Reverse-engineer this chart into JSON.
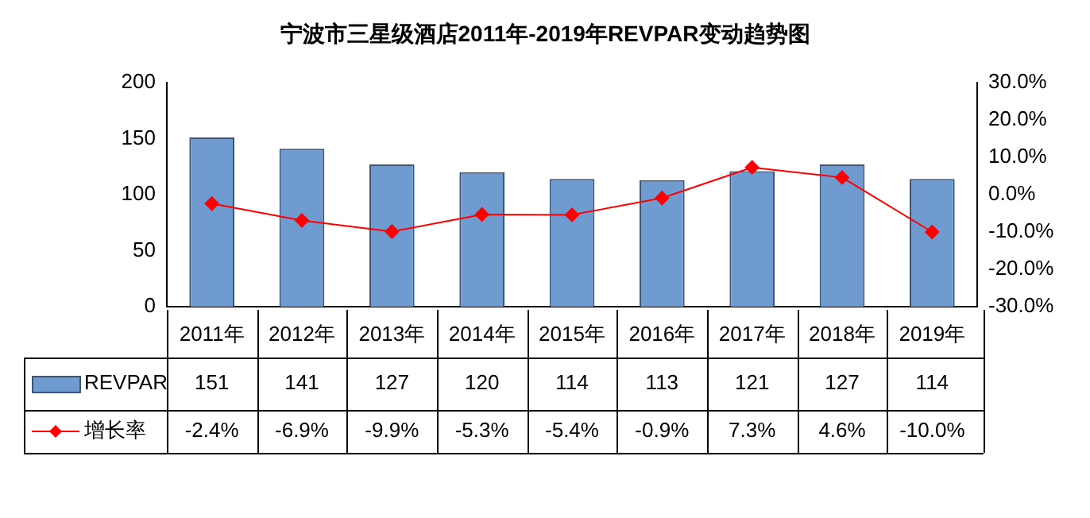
{
  "chart_data": {
    "type": "bar",
    "title": "宁波市三星级酒店2011年-2019年REVPAR变动趋势图",
    "categories": [
      "2011年",
      "2012年",
      "2013年",
      "2014年",
      "2015年",
      "2016年",
      "2017年",
      "2018年",
      "2019年"
    ],
    "series": [
      {
        "name": "REVPAR",
        "color": "#6f9bd0",
        "values": [
          151,
          141,
          127,
          120,
          114,
          113,
          121,
          127,
          114
        ],
        "value_labels": [
          "151",
          "141",
          "127",
          "120",
          "114",
          "113",
          "121",
          "127",
          "114"
        ]
      },
      {
        "name": "增长率",
        "type": "line",
        "axis": "y2",
        "color": "#ff0000",
        "marker": "diamond",
        "values": [
          -2.4,
          -6.9,
          -9.9,
          -5.3,
          -5.4,
          -0.9,
          7.3,
          4.6,
          -10.0
        ],
        "value_labels": [
          "-2.4%",
          "-6.9%",
          "-9.9%",
          "-5.3%",
          "-5.4%",
          "-0.9%",
          "7.3%",
          "4.6%",
          "-10.0%"
        ]
      }
    ],
    "ylim": [
      0,
      200
    ],
    "yticks": [
      0,
      50,
      100,
      150,
      200
    ],
    "y2lim": [
      -30,
      30
    ],
    "y2ticks": [
      {
        "value": -30,
        "label": "-30.0%"
      },
      {
        "value": -20,
        "label": "-20.0%"
      },
      {
        "value": -10,
        "label": "-10.0%"
      },
      {
        "value": 0,
        "label": "0.0%"
      },
      {
        "value": 10,
        "label": "10.0%"
      },
      {
        "value": 20,
        "label": "20.0%"
      },
      {
        "value": 30,
        "label": "30.0%"
      }
    ],
    "grid": false,
    "legend": "bottom"
  }
}
